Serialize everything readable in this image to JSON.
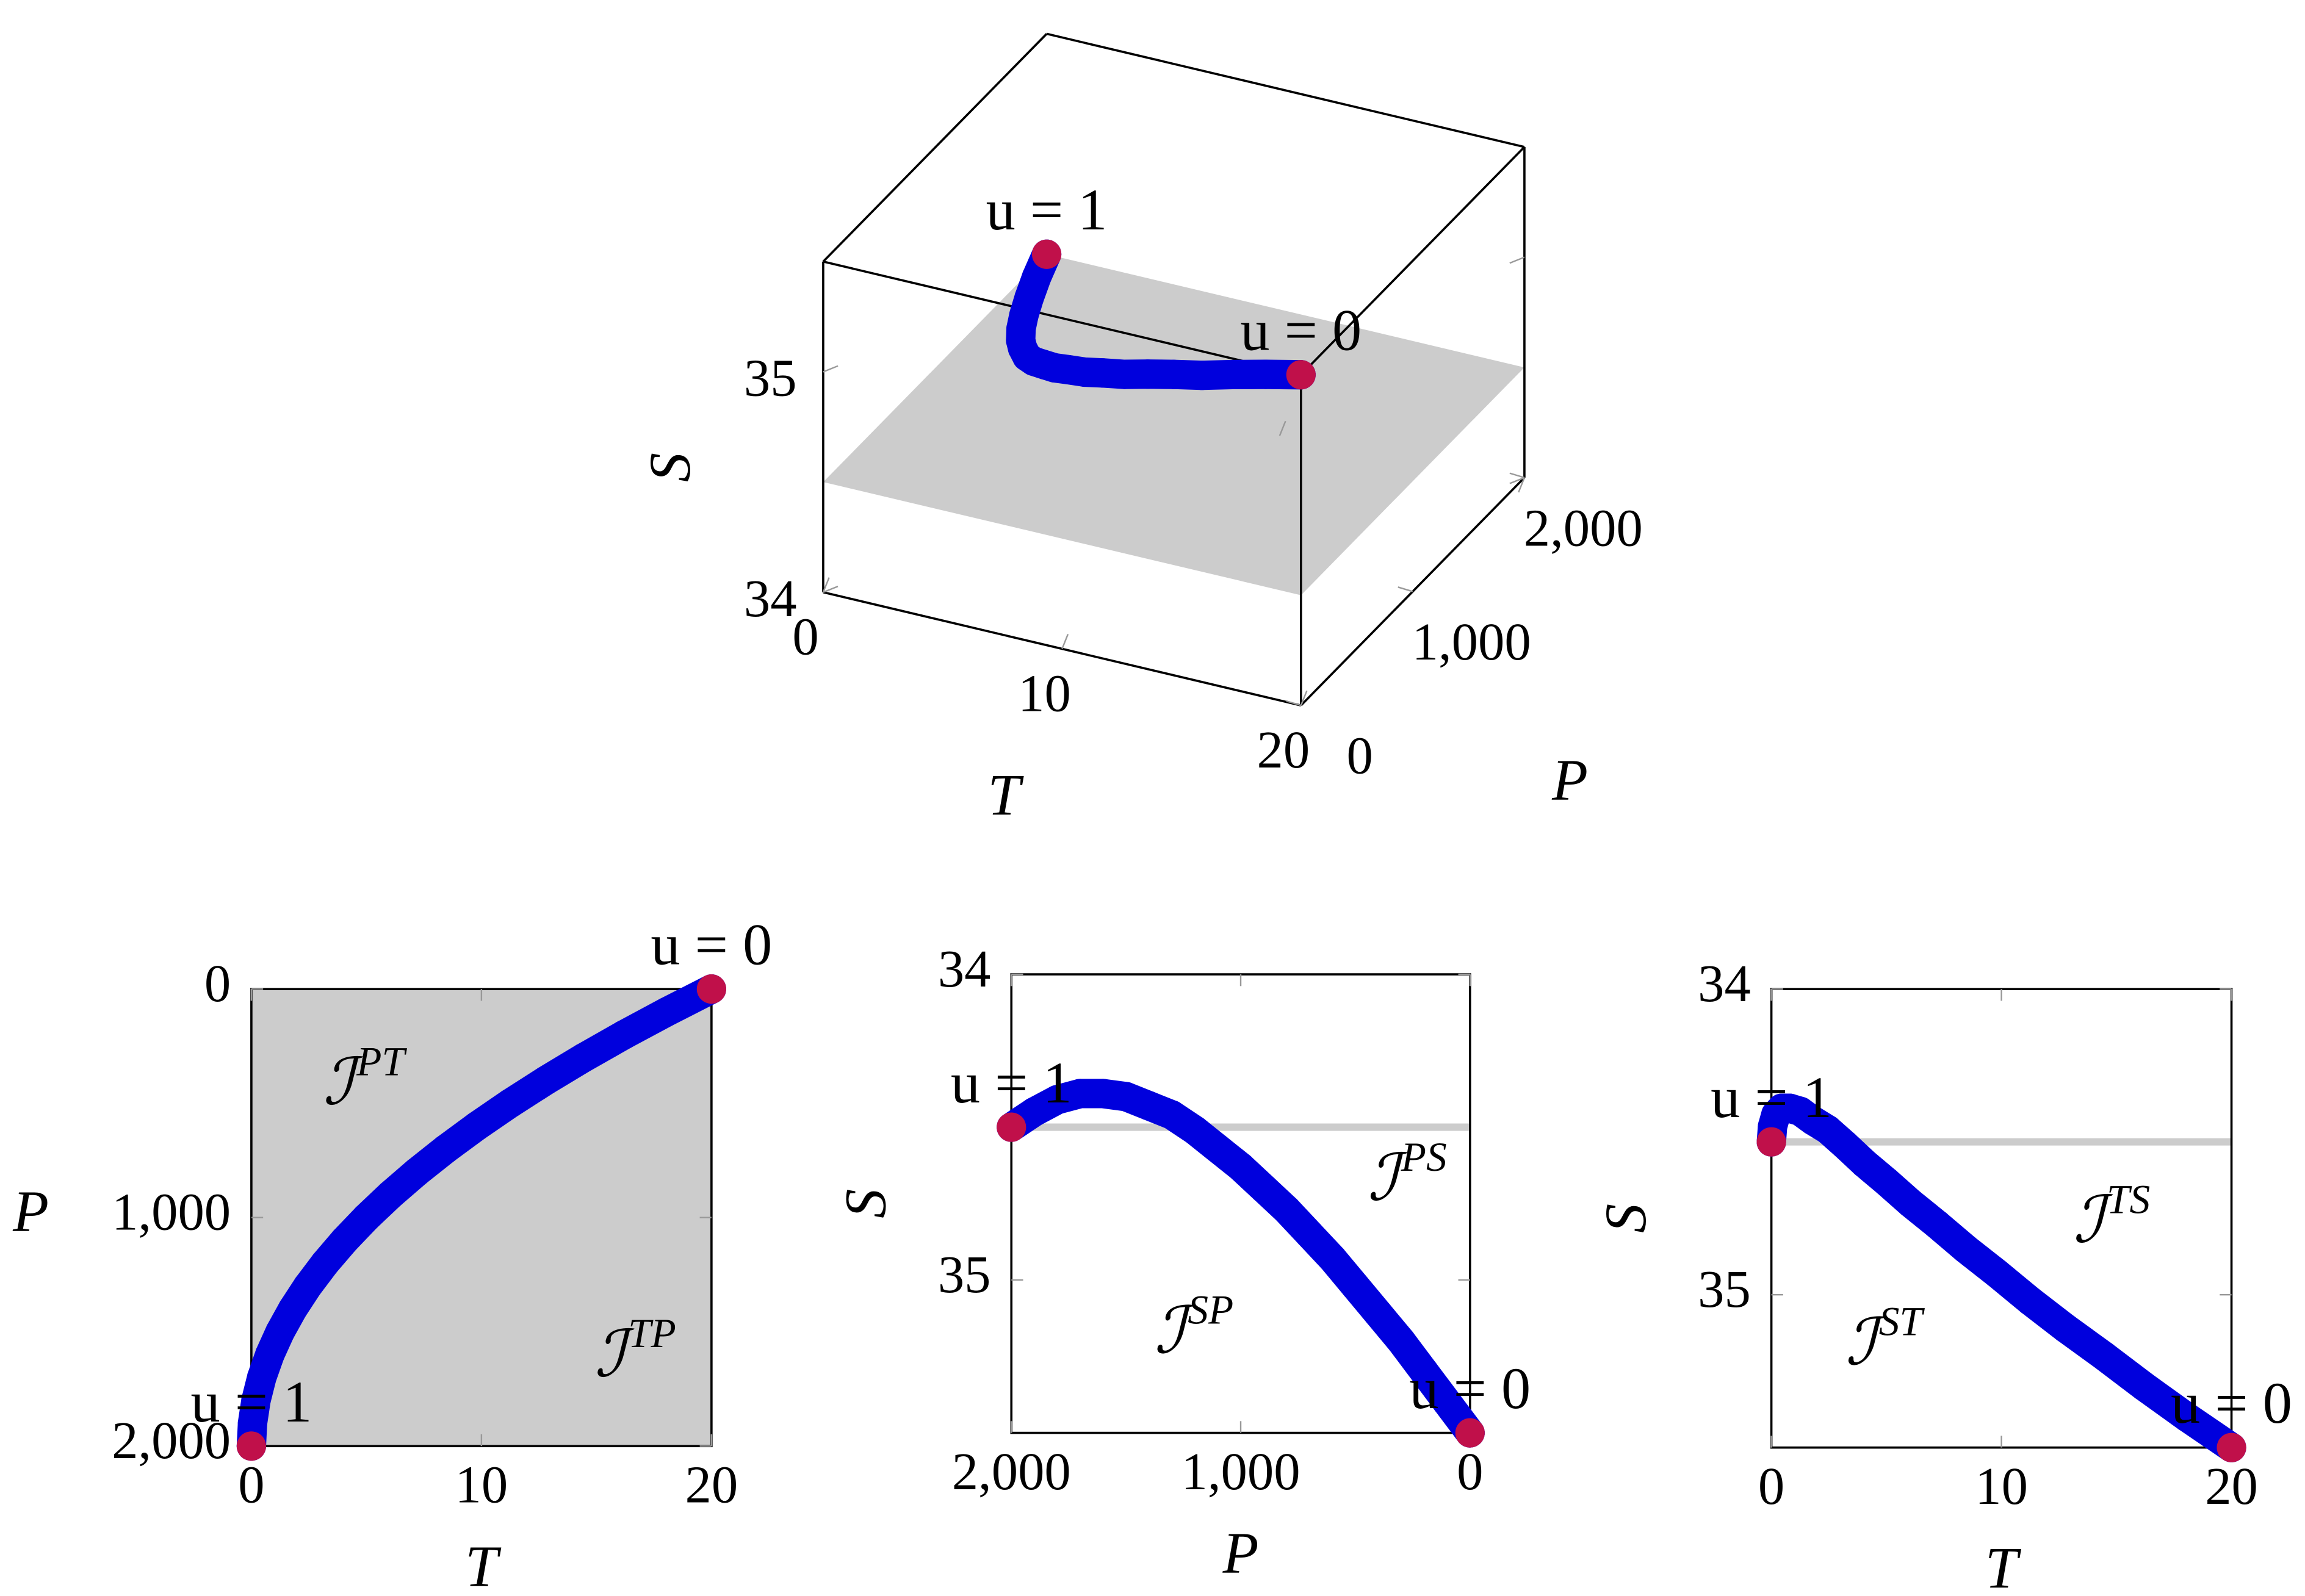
{
  "chart_data": [
    {
      "type": "scatter3d",
      "color": "#0000dd",
      "annotation_color": "#c0104a",
      "plane_color": "#cccccc",
      "xlabel": "T",
      "ylabel": "P",
      "zlabel": "S",
      "x": [
        20,
        18.05,
        16.2,
        14.45,
        12.8,
        11.25,
        9.8,
        8.45,
        7.2,
        6.05,
        5,
        4.05,
        3.2,
        2.45,
        1.8,
        1.25,
        0.8,
        0.45,
        0.2,
        0.05,
        0
      ],
      "y": [
        0,
        100,
        200,
        300,
        400,
        500,
        600,
        700,
        800,
        900,
        1000,
        1100,
        1200,
        1300,
        1400,
        1500,
        1600,
        1700,
        1800,
        1900,
        2000
      ],
      "z": [
        35.5,
        35.4,
        35.3,
        35.2,
        35.11,
        35.02,
        34.93,
        34.85,
        34.77,
        34.7,
        34.63,
        34.57,
        34.51,
        34.46,
        34.43,
        34.4,
        34.39,
        34.39,
        34.41,
        34.45,
        34.5
      ],
      "xlim": [
        0,
        20
      ],
      "ylim": [
        0,
        2000
      ],
      "zlim": [
        34,
        35.5
      ],
      "xticks": [
        0,
        10,
        20
      ],
      "yticks": [
        0,
        {
          "value": 1000,
          "label": "1,000"
        },
        {
          "value": 2000,
          "label": "2,000"
        }
      ],
      "zticks": [
        34,
        35
      ],
      "plane_z": 34.5,
      "annotations": [
        {
          "text": "u = 1",
          "x": 0,
          "y": 2000,
          "z": 34.5
        },
        {
          "text": "u = 0",
          "x": 20,
          "y": 0,
          "z": 35.5
        }
      ]
    },
    {
      "type": "line",
      "color": "#0000dd",
      "annotation_color": "#c0104a",
      "region_color": "#1a1ad0",
      "background": "#cccccc",
      "xlabel": "T",
      "ylabel": "P",
      "x": [
        20,
        18.05,
        16.2,
        14.45,
        12.8,
        11.25,
        9.8,
        8.45,
        7.2,
        6.05,
        5,
        4.05,
        3.2,
        2.45,
        1.8,
        1.25,
        0.8,
        0.45,
        0.2,
        0.05,
        0
      ],
      "y": [
        0,
        100,
        200,
        300,
        400,
        500,
        600,
        700,
        800,
        900,
        1000,
        1100,
        1200,
        1300,
        1400,
        1500,
        1600,
        1700,
        1800,
        1900,
        2000
      ],
      "xlim": [
        0,
        20
      ],
      "ylim": [
        2000,
        0
      ],
      "xticks": [
        0,
        10,
        20
      ],
      "yticks": [
        0,
        {
          "value": 1000,
          "label": "1,000"
        },
        {
          "value": 2000,
          "label": "2,000"
        }
      ],
      "annotations": [
        {
          "text": "u = 0",
          "x": 20,
          "y": 0
        },
        {
          "text": "u = 1",
          "x": 0,
          "y": 2000
        }
      ],
      "regions": [
        {
          "text": "ℐ",
          "superscript": "PT",
          "x": 4.7,
          "y": 400
        },
        {
          "text": "ℐ",
          "superscript": "TP",
          "x": 16.5,
          "y": 1590
        }
      ]
    },
    {
      "type": "line",
      "color": "#0000dd",
      "annotation_color": "#c0104a",
      "region_color": "#1a1ad0",
      "hline": 34.5,
      "hline_color": "#cccccc",
      "xlabel": "P",
      "ylabel": "S",
      "x": [
        0,
        100,
        200,
        300,
        400,
        500,
        600,
        700,
        800,
        900,
        1000,
        1100,
        1200,
        1300,
        1400,
        1500,
        1600,
        1700,
        1800,
        1900,
        2000
      ],
      "y": [
        35.5,
        35.4,
        35.3,
        35.2,
        35.11,
        35.02,
        34.93,
        34.85,
        34.77,
        34.7,
        34.63,
        34.57,
        34.51,
        34.46,
        34.43,
        34.4,
        34.39,
        34.39,
        34.41,
        34.45,
        34.5
      ],
      "xlim": [
        2000,
        0
      ],
      "ylim": [
        35.5,
        34
      ],
      "xticks": [
        {
          "value": 2000,
          "label": "2,000"
        },
        {
          "value": 1000,
          "label": "1,000"
        },
        0
      ],
      "yticks": [
        34,
        35
      ],
      "annotations": [
        {
          "text": "u = 1",
          "x": 2000,
          "y": 34.5
        },
        {
          "text": "u = 0",
          "x": 0,
          "y": 35.5
        }
      ],
      "regions": [
        {
          "text": "ℐ",
          "superscript": "PS",
          "x": 288,
          "y": 34.66
        },
        {
          "text": "ℐ",
          "superscript": "SP",
          "x": 1218,
          "y": 35.16
        }
      ]
    },
    {
      "type": "line",
      "color": "#0000dd",
      "annotation_color": "#c0104a",
      "region_color": "#1a1ad0",
      "hline": 34.5,
      "hline_color": "#cccccc",
      "xlabel": "T",
      "ylabel": "S",
      "x": [
        20,
        18.05,
        16.2,
        14.45,
        12.8,
        11.25,
        9.8,
        8.45,
        7.2,
        6.05,
        5,
        4.05,
        3.2,
        2.45,
        1.8,
        1.25,
        0.8,
        0.45,
        0.2,
        0.05,
        0
      ],
      "y": [
        35.5,
        35.4,
        35.3,
        35.2,
        35.11,
        35.02,
        34.93,
        34.85,
        34.77,
        34.7,
        34.63,
        34.57,
        34.51,
        34.46,
        34.43,
        34.4,
        34.39,
        34.39,
        34.41,
        34.45,
        34.5
      ],
      "xlim": [
        0,
        20
      ],
      "ylim": [
        35.5,
        34
      ],
      "xticks": [
        0,
        10,
        20
      ],
      "yticks": [
        34,
        35
      ],
      "annotations": [
        {
          "text": "u = 1",
          "x": 0,
          "y": 34.5
        },
        {
          "text": "u = 0",
          "x": 20,
          "y": 35.5
        }
      ],
      "regions": [
        {
          "text": "ℐ",
          "superscript": "TS",
          "x": 14.7,
          "y": 34.75
        },
        {
          "text": "ℐ",
          "superscript": "ST",
          "x": 4.8,
          "y": 35.15
        }
      ]
    }
  ]
}
